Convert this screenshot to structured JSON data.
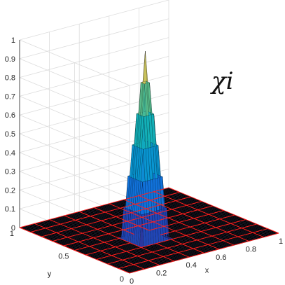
{
  "chart_data": {
    "type": "surface",
    "title": "",
    "annotation": "χi",
    "xlabel": "x",
    "ylabel": "y",
    "zlabel": "",
    "xlim": [
      0,
      1
    ],
    "ylim": [
      0,
      1
    ],
    "zlim": [
      0,
      1
    ],
    "x_ticks": [
      "0",
      "0.2",
      "0.4",
      "0.6",
      "0.8",
      "1"
    ],
    "y_ticks": [
      "0",
      "0.5",
      "1"
    ],
    "z_ticks": [
      "0",
      "0.1",
      "0.2",
      "0.3",
      "0.4",
      "0.5",
      "0.6",
      "0.7",
      "0.8",
      "0.9",
      "1"
    ],
    "grid": true,
    "mesh_divisions": 10,
    "mesh_edge_color": "#ff2020",
    "floor_color": "#000000",
    "colormap": "parula",
    "peak": {
      "x": 0.4,
      "y": 0.4,
      "z": 1.0,
      "support_radius": 0.1
    }
  }
}
